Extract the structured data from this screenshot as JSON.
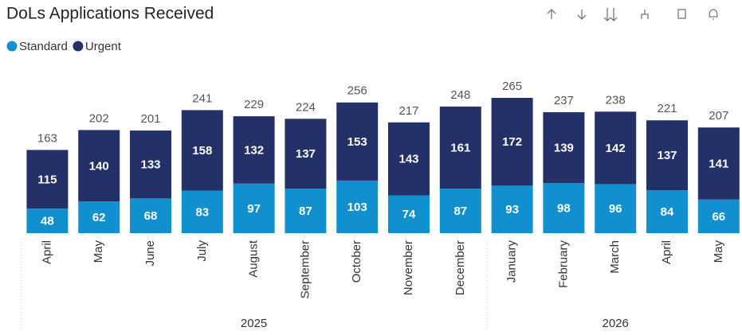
{
  "chart_data": {
    "type": "stacked_bar",
    "title": "DoLs Applications Received",
    "categories": [
      "April",
      "May",
      "June",
      "July",
      "August",
      "September",
      "October",
      "November",
      "December",
      "January",
      "February",
      "March",
      "April",
      "May"
    ],
    "years": [
      "2025",
      "2025",
      "2025",
      "2025",
      "2025",
      "2025",
      "2025",
      "2025",
      "2025",
      "2026",
      "2026",
      "2026",
      "2026",
      "2026"
    ],
    "series": [
      {
        "name": "Standard",
        "color": "#1190d0",
        "values": [
          48,
          62,
          68,
          83,
          97,
          87,
          103,
          74,
          87,
          93,
          98,
          96,
          84,
          66
        ]
      },
      {
        "name": "Urgent",
        "color": "#243169",
        "values": [
          115,
          140,
          133,
          158,
          132,
          137,
          153,
          143,
          161,
          172,
          139,
          142,
          137,
          141
        ]
      }
    ],
    "totals": [
      163,
      202,
      201,
      241,
      229,
      224,
      256,
      217,
      248,
      265,
      237,
      238,
      221,
      207
    ],
    "legend": "top-left"
  }
}
